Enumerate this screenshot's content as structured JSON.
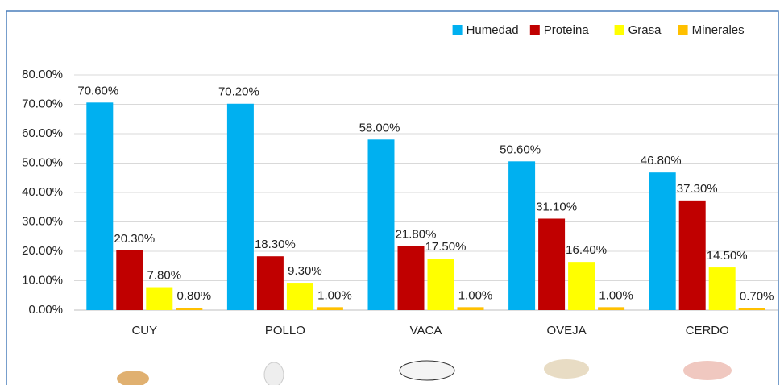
{
  "chart_data": {
    "type": "bar",
    "categories": [
      "CUY",
      "POLLO",
      "VACA",
      "OVEJA",
      "CERDO"
    ],
    "series": [
      {
        "name": "Humedad",
        "color": "#00b0f0",
        "values": [
          70.6,
          70.2,
          58.0,
          50.6,
          46.8
        ],
        "value_labels": [
          "70.60%",
          "70.20%",
          "58.00%",
          "50.60%",
          "46.80%"
        ]
      },
      {
        "name": "Proteina",
        "color": "#c00000",
        "values": [
          20.3,
          18.3,
          21.8,
          31.1,
          37.3
        ],
        "value_labels": [
          "20.30%",
          "18.30%",
          "21.80%",
          "31.10%",
          "37.30%"
        ]
      },
      {
        "name": "Grasa",
        "color": "#ffff00",
        "values": [
          7.8,
          9.3,
          17.5,
          16.4,
          14.5
        ],
        "value_labels": [
          "7.80%",
          "9.30%",
          "17.50%",
          "16.40%",
          "14.50%"
        ]
      },
      {
        "name": "Minerales",
        "color": "#ffc000",
        "values": [
          0.8,
          1.0,
          1.0,
          1.0,
          0.7
        ],
        "value_labels": [
          "0.80%",
          "1.00%",
          "1.00%",
          "1.00%",
          "0.70%"
        ]
      }
    ],
    "ylim": [
      0,
      80
    ],
    "yticks": [
      {
        "value": 0,
        "label": "0.00%"
      },
      {
        "value": 10,
        "label": "10.00%"
      },
      {
        "value": 20,
        "label": "20.00%"
      },
      {
        "value": 30,
        "label": "30.00%"
      },
      {
        "value": 40,
        "label": "40.00%"
      },
      {
        "value": 50,
        "label": "50.00%"
      },
      {
        "value": 60,
        "label": "60.00%"
      },
      {
        "value": 70,
        "label": "70.00%"
      },
      {
        "value": 80,
        "label": "80.00%"
      }
    ],
    "grid": true,
    "legend": "top-right"
  }
}
